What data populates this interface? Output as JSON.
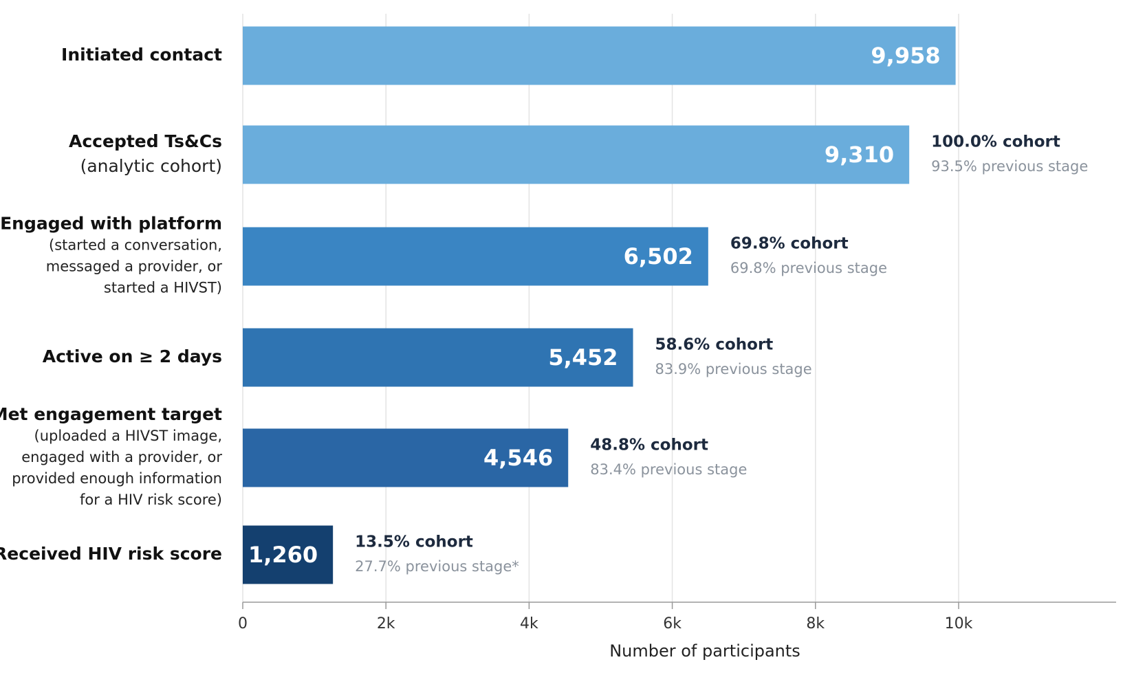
{
  "chart_data": {
    "type": "bar",
    "orientation": "horizontal",
    "x_label": "Number of participants",
    "categories": [
      "Initiated contact",
      "Accepted Ts&Cs",
      "Engaged with platform",
      "Active on ≥ 2 days",
      "Met engagement target",
      "Received HIV risk score"
    ],
    "category_details": [
      null,
      [
        "(analytic cohort)"
      ],
      [
        "(started a conversation,",
        "messaged a provider, or",
        "started a HIVST)"
      ],
      null,
      [
        "(uploaded a HIVST image,",
        "engaged with a provider, or",
        "provided enough information",
        "for a HIV risk score)"
      ],
      null
    ],
    "values": [
      9958,
      9310,
      6502,
      5452,
      4546,
      1260
    ],
    "value_labels": [
      "9,958",
      "9,310",
      "6,502",
      "5,452",
      "4,546",
      "1,260"
    ],
    "colors": [
      "#6aaddc",
      "#6aaddc",
      "#3a85c3",
      "#2f74b2",
      "#2a66a5",
      "#14406f"
    ],
    "annotations": [
      null,
      {
        "cohort": "100.0% cohort",
        "previous": "93.5% previous stage"
      },
      {
        "cohort": "69.8% cohort",
        "previous": "69.8% previous stage"
      },
      {
        "cohort": "58.6% cohort",
        "previous": "83.9% previous stage"
      },
      {
        "cohort": "48.8% cohort",
        "previous": "83.4% previous stage"
      },
      {
        "cohort": "13.5% cohort",
        "previous": "27.7% previous stage*"
      }
    ],
    "xlim": [
      0,
      12200
    ],
    "xticks": [
      0,
      {
        "value": 2000,
        "label": "2k"
      },
      {
        "value": 4000,
        "label": "4k"
      },
      {
        "value": 6000,
        "label": "6k"
      },
      {
        "value": 8000,
        "label": "8k"
      },
      {
        "value": 10000,
        "label": "10k"
      }
    ],
    "grid": true
  }
}
